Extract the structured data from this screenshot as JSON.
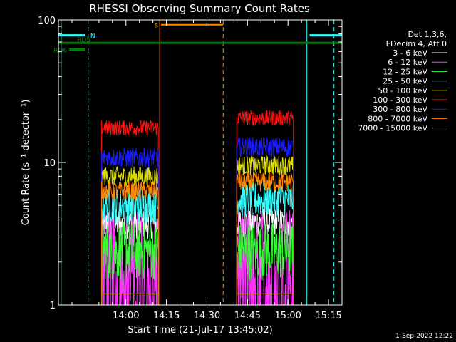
{
  "chart_data": {
    "type": "line",
    "title": "RHESSI Observing Summary Count Rates",
    "xlabel": "Start Time (21-Jul-17 13:45:02)",
    "ylabel": "Count Rate (s⁻¹ detector⁻¹)",
    "x_unit": "minutes",
    "xlim": [
      -10,
      95
    ],
    "ylim": [
      1,
      100
    ],
    "y_scale": "log",
    "x_ticks": [
      {
        "value": 15,
        "label": "14:00"
      },
      {
        "value": 30,
        "label": "14:15"
      },
      {
        "value": 45,
        "label": "14:30"
      },
      {
        "value": 60,
        "label": "14:45"
      },
      {
        "value": 75,
        "label": "15:00"
      },
      {
        "value": 90,
        "label": "15:15"
      }
    ],
    "y_ticks": [
      {
        "value": 1,
        "label": "1"
      },
      {
        "value": 10,
        "label": "10"
      },
      {
        "value": 100,
        "label": "100"
      }
    ],
    "legend_header": [
      "Det 1,3,6,",
      "FDecim 4, Att 0"
    ],
    "legend_placement": "right",
    "segments": [
      [
        6,
        27
      ],
      [
        56,
        77
      ]
    ],
    "series": [
      {
        "name": "3 - 6 keV",
        "color": "#ffffff",
        "levels": [
          3.7,
          3.8
        ],
        "noise": 0.15
      },
      {
        "name": "6 - 12 keV",
        "color": "#ff33ff",
        "levels": [
          2.0,
          2.0
        ],
        "noise": 0.55
      },
      {
        "name": "12 - 25 keV",
        "color": "#33ff33",
        "levels": [
          2.4,
          2.4
        ],
        "noise": 0.3
      },
      {
        "name": "25 - 50 keV",
        "color": "#33ffff",
        "levels": [
          5.0,
          5.5
        ],
        "noise": 0.18
      },
      {
        "name": "50 - 100 keV",
        "color": "#dddd00",
        "levels": [
          8.0,
          9.5
        ],
        "noise": 0.1
      },
      {
        "name": "100 - 300 keV",
        "color": "#ff1010",
        "levels": [
          17.5,
          20.5
        ],
        "noise": 0.08
      },
      {
        "name": "300 - 800 keV",
        "color": "#1a1aff",
        "levels": [
          10.8,
          12.8
        ],
        "noise": 0.1
      },
      {
        "name": "800 - 7000 keV",
        "color": "#ff8800",
        "levels": [
          6.3,
          7.3
        ],
        "noise": 0.1
      },
      {
        "name": "7000 - 15000 keV",
        "color": "#b08a00",
        "levels": [
          1.2,
          1.2
        ],
        "noise": 0.0
      }
    ],
    "flags": [
      {
        "label": "N",
        "color": "#33ffff",
        "intervals": [
          [
            -10,
            0
          ],
          [
            83,
            95
          ]
        ],
        "level": 78
      },
      {
        "label": "S",
        "color": "#ff8800",
        "intervals": [
          [
            28,
            51
          ]
        ],
        "level": 93
      },
      {
        "label": "RD5",
        "color": "#008000",
        "intervals": [
          [
            -10,
            95
          ]
        ],
        "level": 69
      },
      {
        "label": "RD6",
        "color": "#008000",
        "intervals": [
          [
            -6,
            0
          ]
        ],
        "level": 62
      }
    ],
    "vlines": [
      {
        "x": -9,
        "color": "#33ffff",
        "dash": false
      },
      {
        "x": 1,
        "color": "#33ffff",
        "dash": true
      },
      {
        "x": 82,
        "color": "#33ffff",
        "dash": false
      },
      {
        "x": 92,
        "color": "#33ffff",
        "dash": true
      },
      {
        "x": 27.5,
        "color": "#ff8800",
        "dash": false
      },
      {
        "x": 51,
        "color": "#ff8800",
        "dash": true
      }
    ]
  },
  "footer": {
    "date_stamp": "1-Sep-2022 12:22"
  }
}
